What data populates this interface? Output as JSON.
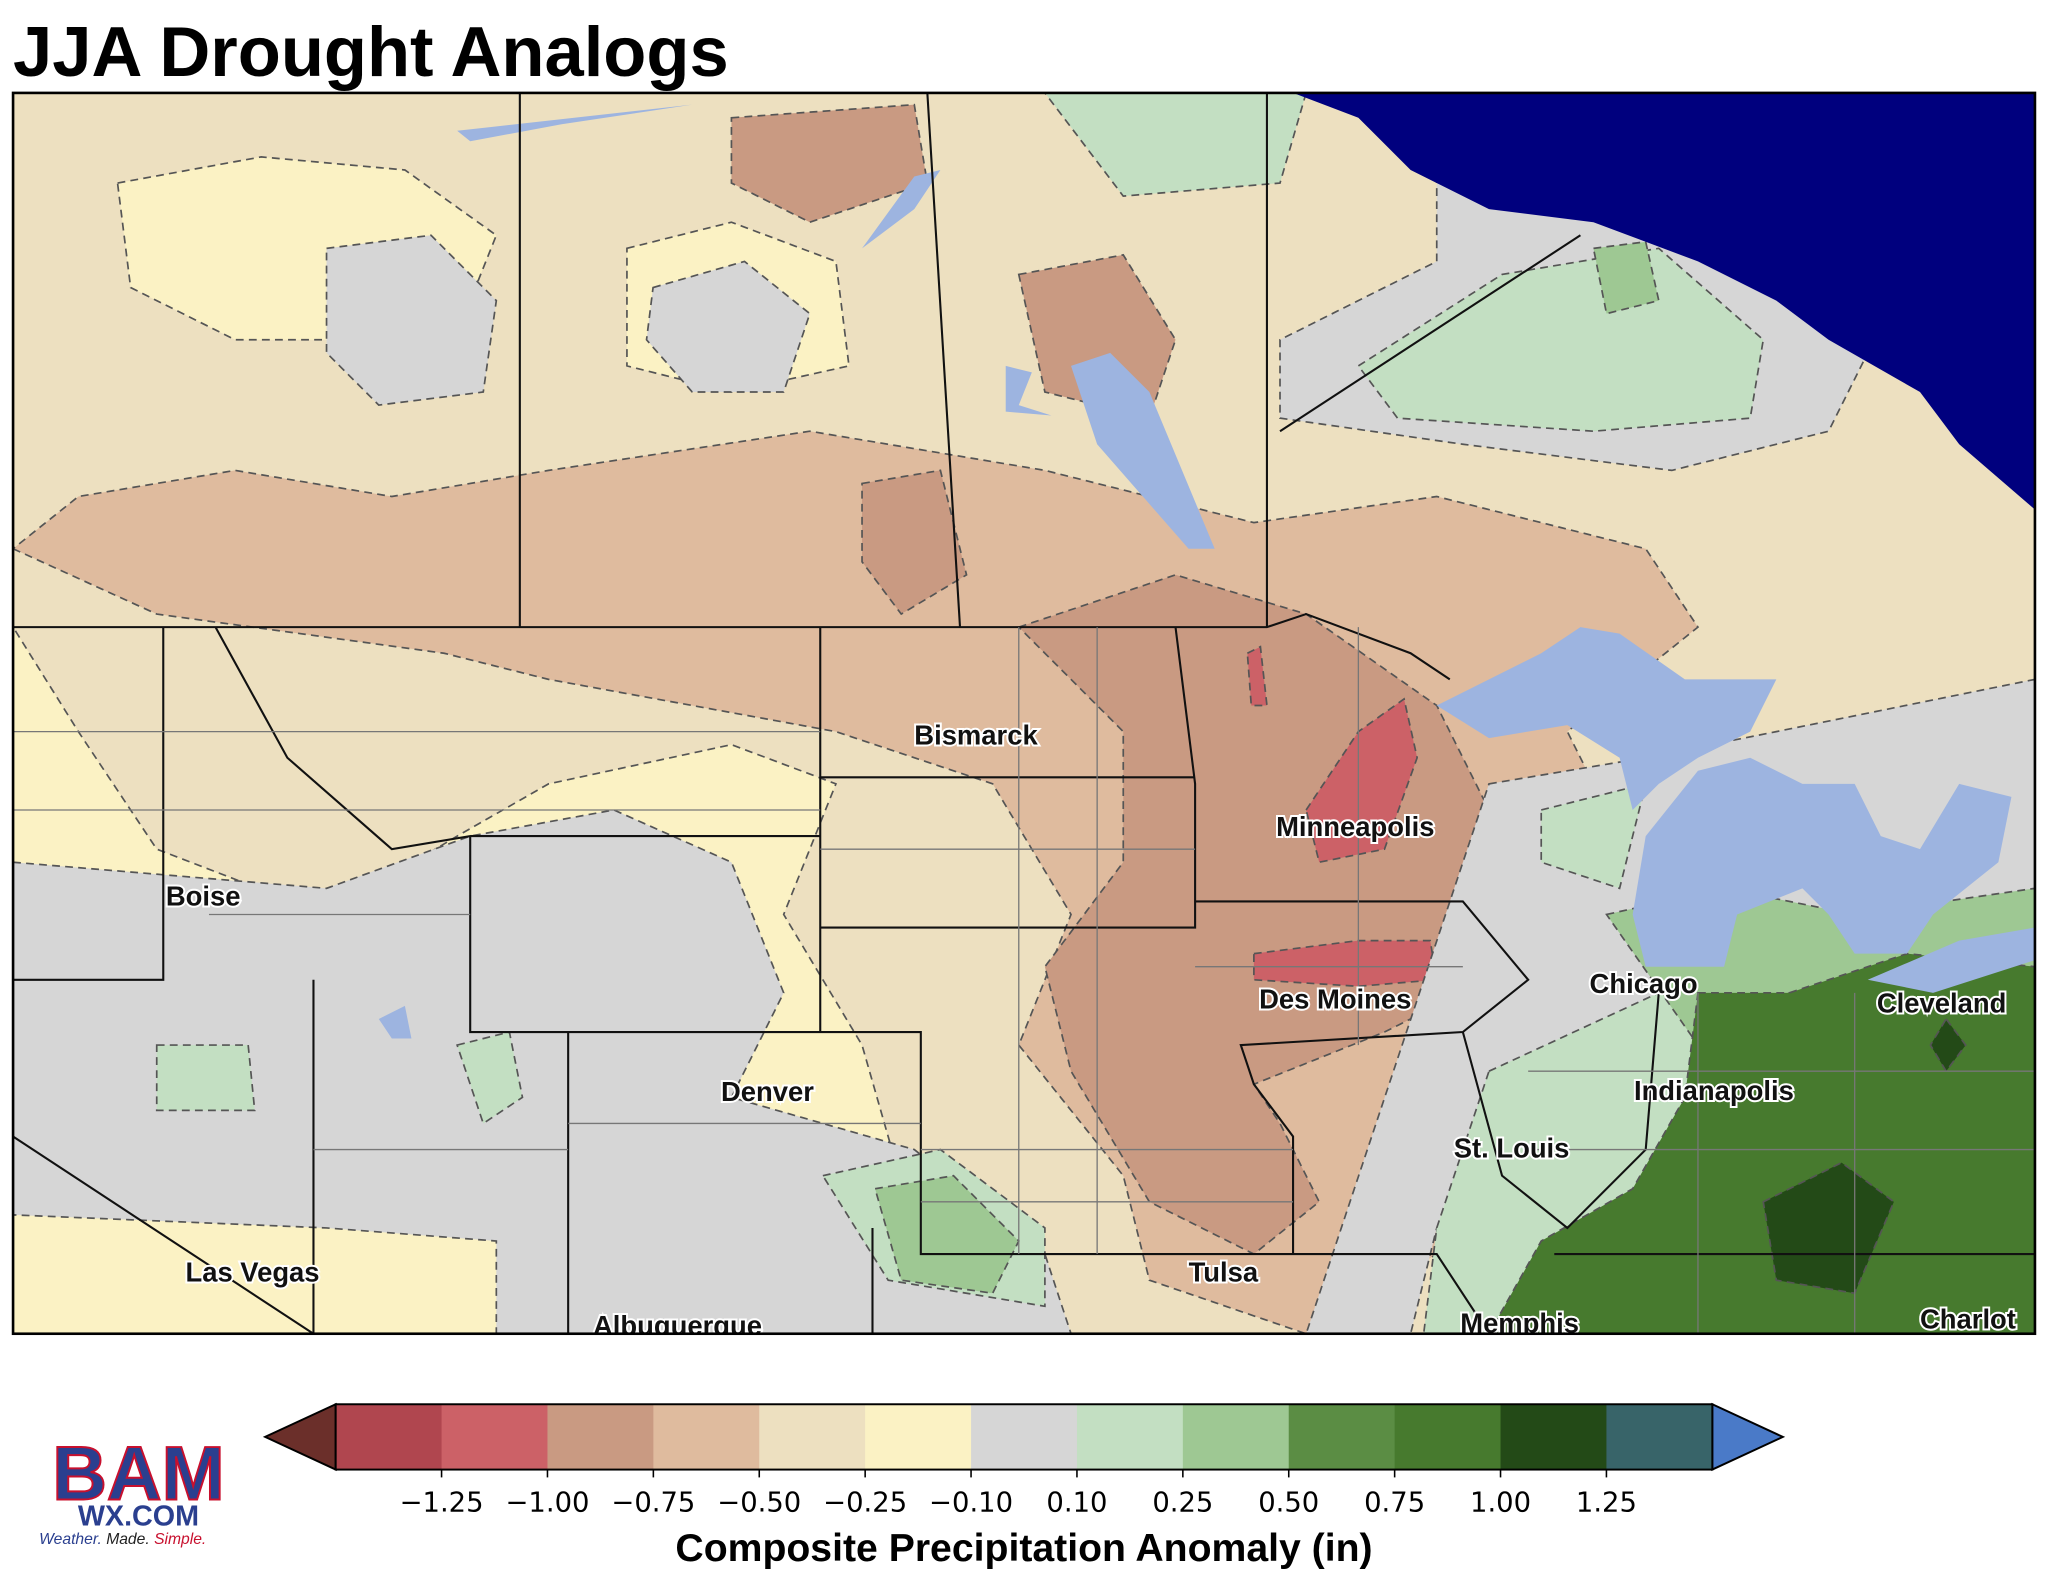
{
  "title": "JJA Drought Analogs",
  "cities": [
    "Bismarck",
    "Minneapolis",
    "Boise",
    "Des Moines",
    "Chicago",
    "Cleveland",
    "Indianapolis",
    "Denver",
    "St. Louis",
    "Las Vegas",
    "Tulsa",
    "Albuquerque",
    "Memphis",
    "Charlot"
  ],
  "colorbar": {
    "label": "Composite Precipitation Anomaly (in)",
    "colors": [
      "#6b2f2a",
      "#b0464f",
      "#cc6167",
      "#c99a82",
      "#dfbb9e",
      "#ede0c0",
      "#fbf2c4",
      "#d6d6d6",
      "#c3dfc2",
      "#9ec893",
      "#5b8d44",
      "#477a2e",
      "#234a17",
      "#386469",
      "#4a7ac8"
    ],
    "ticks": [
      {
        "value": -1.25,
        "label": "−1.25"
      },
      {
        "value": -1.0,
        "label": "−1.00"
      },
      {
        "value": -0.75,
        "label": "−0.75"
      },
      {
        "value": -0.5,
        "label": "−0.50"
      },
      {
        "value": -0.25,
        "label": "−0.25"
      },
      {
        "value": -0.1,
        "label": "−0.10"
      },
      {
        "value": 0.1,
        "label": "0.10"
      },
      {
        "value": 0.25,
        "label": "0.25"
      },
      {
        "value": 0.5,
        "label": "0.50"
      },
      {
        "value": 0.75,
        "label": "0.75"
      },
      {
        "value": 1.0,
        "label": "1.00"
      },
      {
        "value": 1.25,
        "label": "1.25"
      }
    ]
  },
  "logo": {
    "mark": "BAM",
    "site": "WX.COM",
    "tagline": [
      "Weather.",
      "Made.",
      "Simple."
    ]
  }
}
